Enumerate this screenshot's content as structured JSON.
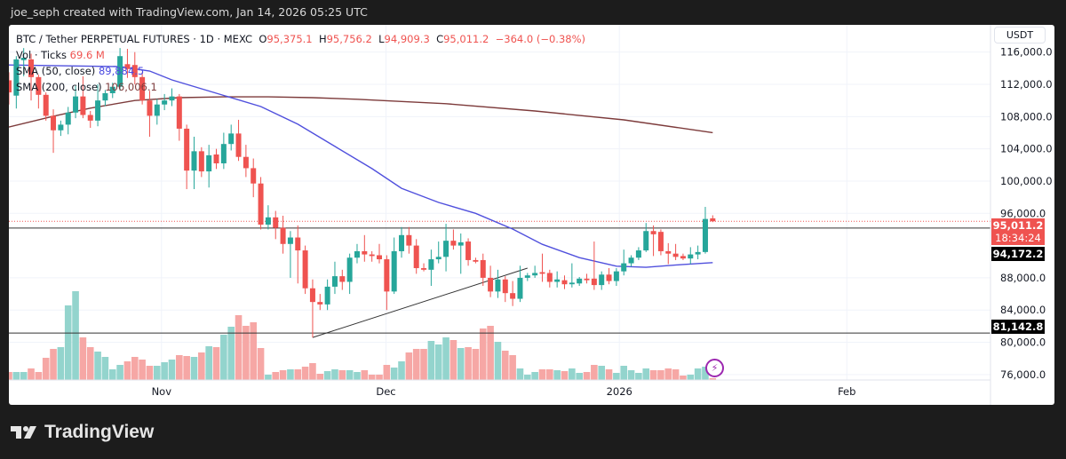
{
  "header": {
    "credit": "joe_seph created with TradingView.com, Jan 14, 2026 05:25 UTC"
  },
  "legend": {
    "symbol": "BTC / Tether PERPETUAL FUTURES · 1D · MEXC",
    "o_label": "O",
    "o": "95,375.1",
    "h_label": "H",
    "h": "95,756.2",
    "l_label": "L",
    "l": "94,909.3",
    "c_label": "C",
    "c": "95,011.2",
    "change": "−364.0 (−0.38%)",
    "vol_label": "Vol · Ticks",
    "vol": "69.6 M",
    "sma50_label": "SMA (50, close)",
    "sma50": "89,884.5",
    "sma200_label": "SMA (200, close)",
    "sma200": "106,006.1"
  },
  "price_axis": {
    "currency": "USDT",
    "last_price": "95,011.2",
    "countdown": "18:34:24",
    "line_labels": [
      "94,172.2",
      "81,142.8"
    ]
  },
  "colors": {
    "up": "#26a69a",
    "down": "#ef5350",
    "vol_up": "#93d4cd",
    "vol_down": "#f6a7a5",
    "sma50": "#5050dd",
    "sma200": "#7d3b3b",
    "background": "#1c1c1c"
  },
  "icons": {
    "alert": "lightning-bolt-icon",
    "logo": "tradingview-logo-icon"
  },
  "brand": "TradingView",
  "chart_data": {
    "type": "candlestick",
    "ylim": [
      74000,
      117500
    ],
    "yticks": [
      116000,
      112000,
      108000,
      104000,
      100000,
      96000,
      88000,
      84000,
      80000,
      76000
    ],
    "ytick_labels": [
      "116,000.0",
      "112,000.0",
      "108,000.0",
      "104,000.0",
      "100,000.0",
      "96,000.0",
      "88,000.0",
      "84,000.0",
      "80,000.0",
      "76,000.0"
    ],
    "xticks": [
      {
        "label": "Nov",
        "index": 20.6
      },
      {
        "label": "Dec",
        "index": 50.9
      },
      {
        "label": "2026",
        "index": 82.4
      },
      {
        "label": "Feb",
        "index": 113.1
      }
    ],
    "grid": true,
    "ohlc": [
      [
        112500,
        113500,
        109500,
        111000
      ],
      [
        110600,
        115500,
        109000,
        115100
      ],
      [
        115000,
        116500,
        113000,
        115300
      ],
      [
        115100,
        115800,
        110000,
        112900
      ],
      [
        112900,
        113200,
        109000,
        110700
      ],
      [
        110700,
        111000,
        107500,
        108100
      ],
      [
        108100,
        108900,
        103500,
        106300
      ],
      [
        106300,
        107500,
        105600,
        107000
      ],
      [
        107000,
        109200,
        105800,
        108500
      ],
      [
        108500,
        111800,
        107800,
        110500
      ],
      [
        110500,
        113000,
        107800,
        108200
      ],
      [
        108200,
        108700,
        106600,
        107500
      ],
      [
        107500,
        112000,
        106800,
        110000
      ],
      [
        110000,
        111300,
        109300,
        110900
      ],
      [
        110900,
        112200,
        110300,
        111700
      ],
      [
        111700,
        116500,
        111200,
        115500
      ],
      [
        114500,
        116400,
        112800,
        113900
      ],
      [
        114400,
        116000,
        112000,
        112900
      ],
      [
        112900,
        113500,
        109500,
        110000
      ],
      [
        110000,
        111200,
        105500,
        108100
      ],
      [
        108100,
        110200,
        107000,
        109500
      ],
      [
        109500,
        110800,
        108800,
        110000
      ],
      [
        110000,
        111500,
        109300,
        110500
      ],
      [
        110500,
        110800,
        105000,
        106500
      ],
      [
        106500,
        107000,
        99000,
        101300
      ],
      [
        101300,
        105500,
        99000,
        103700
      ],
      [
        103700,
        104200,
        100500,
        101200
      ],
      [
        101200,
        104500,
        99200,
        103200
      ],
      [
        103300,
        104000,
        101500,
        102200
      ],
      [
        102200,
        106000,
        101500,
        104600
      ],
      [
        104600,
        107000,
        103800,
        105900
      ],
      [
        105900,
        107600,
        102500,
        103000
      ],
      [
        103000,
        104500,
        100500,
        101600
      ],
      [
        101600,
        102800,
        98000,
        99700
      ],
      [
        99700,
        100500,
        94000,
        94600
      ],
      [
        94600,
        97000,
        94000,
        95500
      ],
      [
        95500,
        96300,
        92800,
        94200
      ],
      [
        94200,
        95700,
        91000,
        92200
      ],
      [
        92200,
        93800,
        88000,
        93000
      ],
      [
        93000,
        94500,
        87300,
        91400
      ],
      [
        91400,
        92000,
        86000,
        86700
      ],
      [
        86700,
        87800,
        80600,
        85000
      ],
      [
        85000,
        86000,
        84000,
        84700
      ],
      [
        84700,
        87800,
        84000,
        86900
      ],
      [
        86900,
        90000,
        86000,
        88200
      ],
      [
        88200,
        89000,
        86500,
        87500
      ],
      [
        87500,
        91000,
        86000,
        90500
      ],
      [
        90500,
        92200,
        89800,
        91300
      ],
      [
        91300,
        93300,
        90000,
        90900
      ],
      [
        90900,
        91300,
        90000,
        90700
      ],
      [
        90800,
        92200,
        89800,
        90300
      ],
      [
        90300,
        90800,
        84000,
        86300
      ],
      [
        86300,
        93000,
        86000,
        91300
      ],
      [
        91300,
        94300,
        90500,
        93300
      ],
      [
        93300,
        94300,
        91000,
        92000
      ],
      [
        92000,
        92800,
        88500,
        89200
      ],
      [
        89200,
        89800,
        88800,
        89000
      ],
      [
        89000,
        91500,
        87000,
        90300
      ],
      [
        90300,
        92500,
        89800,
        90600
      ],
      [
        90600,
        94700,
        88800,
        92600
      ],
      [
        92600,
        94000,
        91500,
        92000
      ],
      [
        92000,
        93500,
        88500,
        92400
      ],
      [
        92500,
        92900,
        89500,
        90200
      ],
      [
        90200,
        90500,
        89800,
        90000
      ],
      [
        90200,
        91000,
        87000,
        88000
      ],
      [
        88000,
        89500,
        85600,
        86300
      ],
      [
        86300,
        89000,
        85500,
        87800
      ],
      [
        87800,
        88200,
        85000,
        86100
      ],
      [
        86100,
        87600,
        84500,
        85400
      ],
      [
        85400,
        89500,
        85000,
        88000
      ],
      [
        88000,
        88600,
        87600,
        88300
      ],
      [
        88300,
        89500,
        88000,
        88600
      ],
      [
        88700,
        91000,
        87500,
        88500
      ],
      [
        88600,
        89000,
        86800,
        87500
      ],
      [
        87500,
        88800,
        86800,
        87800
      ],
      [
        87700,
        88300,
        86600,
        87200
      ],
      [
        87200,
        89800,
        86800,
        87400
      ],
      [
        87300,
        88100,
        87000,
        87900
      ],
      [
        87900,
        88500,
        87300,
        87700
      ],
      [
        87900,
        92500,
        86500,
        87100
      ],
      [
        87100,
        88800,
        86500,
        88400
      ],
      [
        88400,
        89200,
        87200,
        87600
      ],
      [
        87600,
        89200,
        87000,
        88800
      ],
      [
        88800,
        91500,
        88300,
        89800
      ],
      [
        89800,
        90800,
        89400,
        90500
      ],
      [
        90500,
        91800,
        90200,
        91400
      ],
      [
        91400,
        94800,
        91200,
        93800
      ],
      [
        93800,
        94500,
        90700,
        93400
      ],
      [
        93700,
        94000,
        90800,
        91300
      ],
      [
        91300,
        92300,
        89700,
        91000
      ],
      [
        91000,
        92200,
        90200,
        90600
      ],
      [
        90700,
        91000,
        90200,
        90400
      ],
      [
        90400,
        91800,
        89700,
        90900
      ],
      [
        90900,
        92000,
        90300,
        91200
      ],
      [
        91200,
        96800,
        91000,
        95300
      ],
      [
        95375.1,
        95756.2,
        94909.3,
        95011.2
      ]
    ],
    "volume_m": [
      230,
      230,
      230,
      322,
      230,
      598,
      828,
      874,
      1955,
      2323,
      1127,
      874,
      759,
      621,
      299,
      414,
      506,
      621,
      552,
      391,
      391,
      483,
      552,
      667,
      644,
      621,
      736,
      897,
      874,
      1196,
      1403,
      1702,
      1426,
      1518,
      851,
      161,
      230,
      276,
      299,
      299,
      368,
      460,
      184,
      253,
      299,
      276,
      276,
      230,
      276,
      161,
      161,
      414,
      345,
      506,
      736,
      828,
      828,
      1035,
      943,
      1127,
      1058,
      851,
      874,
      828,
      1357,
      1426,
      1012,
      782,
      667,
      322,
      161,
      230,
      299,
      299,
      276,
      253,
      322,
      207,
      230,
      414,
      391,
      299,
      207,
      391,
      276,
      207,
      322,
      276,
      276,
      322,
      299,
      138,
      161,
      322,
      368,
      69.6
    ],
    "sma50": [
      [
        0,
        114400
      ],
      [
        15,
        114200
      ],
      [
        19,
        113650
      ],
      [
        22,
        112550
      ],
      [
        28,
        110900
      ],
      [
        34,
        109250
      ],
      [
        39,
        107050
      ],
      [
        44,
        104300
      ],
      [
        49,
        101550
      ],
      [
        53,
        99100
      ],
      [
        58,
        97350
      ],
      [
        63,
        96000
      ],
      [
        68,
        94050
      ],
      [
        72,
        92150
      ],
      [
        77,
        90500
      ],
      [
        82,
        89450
      ],
      [
        86,
        89300
      ],
      [
        91,
        89650
      ],
      [
        95,
        89884.5
      ]
    ],
    "sma200": [
      [
        0,
        106700
      ],
      [
        6,
        108050
      ],
      [
        11,
        109050
      ],
      [
        17,
        110000
      ],
      [
        23,
        110350
      ],
      [
        29,
        110450
      ],
      [
        35,
        110450
      ],
      [
        41,
        110350
      ],
      [
        47,
        110150
      ],
      [
        59,
        109600
      ],
      [
        71,
        108700
      ],
      [
        83,
        107600
      ],
      [
        95,
        106006.1
      ]
    ],
    "horizontal_lines": [
      94172.2,
      81142.8
    ],
    "trendline": [
      [
        41,
        80600
      ],
      [
        70,
        89200
      ]
    ]
  }
}
